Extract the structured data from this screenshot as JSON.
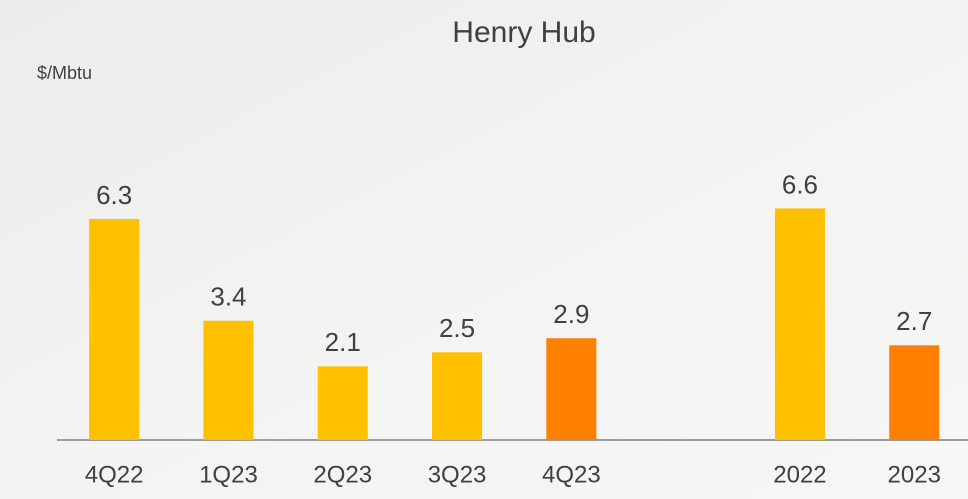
{
  "chart_data": {
    "type": "bar",
    "title": "Henry Hub",
    "y_label": "$/Mbtu",
    "categories": [
      "4Q22",
      "1Q23",
      "2Q23",
      "3Q23",
      "4Q23",
      null,
      "2022",
      "2023"
    ],
    "values": [
      6.3,
      3.4,
      2.1,
      2.5,
      2.9,
      null,
      6.6,
      2.7
    ],
    "colors": [
      "#ffc000",
      "#ffc000",
      "#ffc000",
      "#ffc000",
      "#ff8000",
      null,
      "#ffc000",
      "#ff8000"
    ],
    "ylim": [
      0,
      12
    ]
  }
}
